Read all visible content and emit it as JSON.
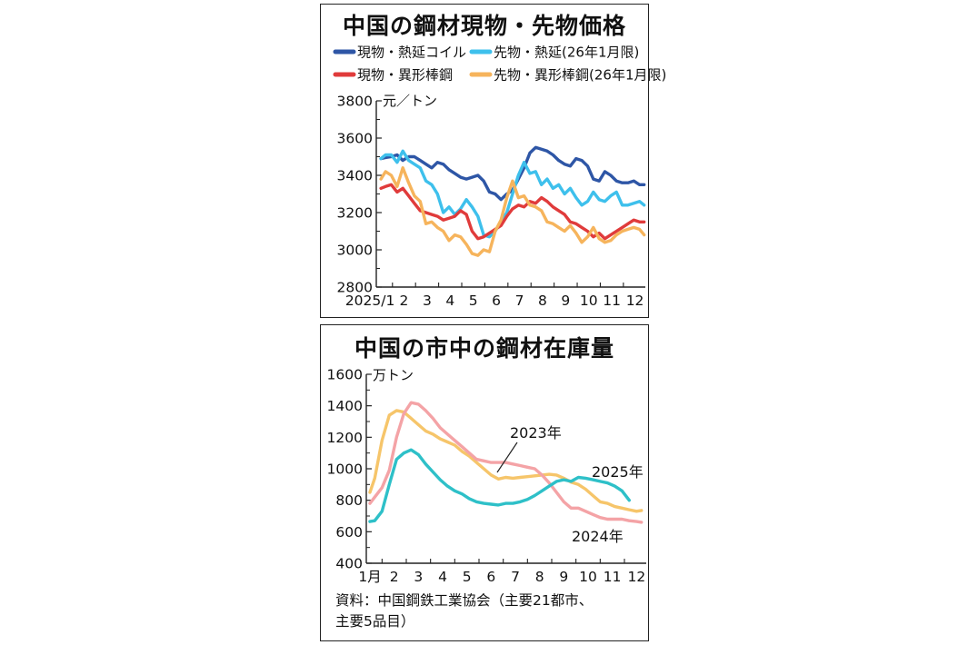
{
  "chart_data": [
    {
      "type": "line",
      "title": "中国の鋼材現物・先物価格",
      "unit_label": "元／トン",
      "ylim": [
        2800,
        3800
      ],
      "yticks": [
        "2800",
        "3000",
        "3200",
        "3400",
        "3600",
        "3800"
      ],
      "x_tick_labels": [
        "2025/1",
        "2",
        "3",
        "4",
        "5",
        "6",
        "7",
        "8",
        "9",
        "10",
        "11",
        "12"
      ],
      "x_range": [
        0.8,
        12.45
      ],
      "grid": false,
      "legend_position": "top",
      "series": [
        {
          "name": "現物・熱延コイル",
          "color": "#2e56a6",
          "x": [
            1.0,
            1.2,
            1.45,
            1.7,
            1.95,
            2.2,
            2.45,
            2.7,
            2.95,
            3.2,
            3.45,
            3.7,
            3.95,
            4.2,
            4.45,
            4.7,
            4.95,
            5.2,
            5.45,
            5.7,
            5.95,
            6.2,
            6.45,
            6.7,
            6.95,
            7.2,
            7.45,
            7.7,
            7.95,
            8.2,
            8.45,
            8.7,
            8.95,
            9.2,
            9.45,
            9.7,
            9.95,
            10.2,
            10.45,
            10.7,
            10.95,
            11.2,
            11.45,
            11.7,
            11.95,
            12.2,
            12.4
          ],
          "y": [
            3490,
            3495,
            3500,
            3510,
            3480,
            3500,
            3500,
            3480,
            3460,
            3440,
            3470,
            3460,
            3430,
            3410,
            3390,
            3380,
            3390,
            3400,
            3370,
            3310,
            3300,
            3270,
            3300,
            3320,
            3380,
            3440,
            3520,
            3550,
            3540,
            3530,
            3510,
            3480,
            3460,
            3450,
            3490,
            3480,
            3450,
            3380,
            3370,
            3420,
            3400,
            3370,
            3360,
            3360,
            3370,
            3350,
            3350
          ]
        },
        {
          "name": "先物・熱延(26年1月限)",
          "color": "#3ec0ec",
          "x": [
            1.0,
            1.2,
            1.45,
            1.7,
            1.95,
            2.2,
            2.45,
            2.7,
            2.95,
            3.2,
            3.45,
            3.7,
            3.95,
            4.2,
            4.45,
            4.7,
            4.95,
            5.2,
            5.45,
            5.7,
            5.95,
            6.2,
            6.45,
            6.7,
            6.95,
            7.2,
            7.45,
            7.7,
            7.95,
            8.2,
            8.45,
            8.7,
            8.95,
            9.2,
            9.45,
            9.7,
            9.95,
            10.2,
            10.45,
            10.7,
            10.95,
            11.2,
            11.45,
            11.7,
            11.95,
            12.2,
            12.4
          ],
          "y": [
            3490,
            3510,
            3510,
            3470,
            3530,
            3480,
            3460,
            3440,
            3370,
            3350,
            3300,
            3200,
            3230,
            3190,
            3220,
            3270,
            3230,
            3180,
            3080,
            3070,
            3100,
            3150,
            3200,
            3300,
            3400,
            3470,
            3410,
            3420,
            3350,
            3380,
            3330,
            3350,
            3300,
            3330,
            3280,
            3240,
            3260,
            3310,
            3270,
            3260,
            3290,
            3310,
            3240,
            3240,
            3250,
            3260,
            3240
          ]
        },
        {
          "name": "現物・異形棒鋼",
          "color": "#e03b3b",
          "x": [
            1.0,
            1.2,
            1.45,
            1.7,
            1.95,
            2.2,
            2.45,
            2.7,
            2.95,
            3.2,
            3.45,
            3.7,
            3.95,
            4.2,
            4.45,
            4.7,
            4.95,
            5.2,
            5.45,
            5.7,
            5.95,
            6.2,
            6.45,
            6.7,
            6.95,
            7.2,
            7.45,
            7.7,
            7.95,
            8.2,
            8.45,
            8.7,
            8.95,
            9.2,
            9.45,
            9.7,
            9.95,
            10.2,
            10.45,
            10.7,
            10.95,
            11.2,
            11.45,
            11.7,
            11.95,
            12.2,
            12.4
          ],
          "y": [
            3330,
            3340,
            3350,
            3310,
            3330,
            3290,
            3250,
            3210,
            3200,
            3190,
            3180,
            3160,
            3170,
            3180,
            3210,
            3190,
            3100,
            3060,
            3070,
            3090,
            3110,
            3130,
            3180,
            3220,
            3240,
            3230,
            3260,
            3250,
            3280,
            3260,
            3230,
            3210,
            3190,
            3150,
            3140,
            3120,
            3100,
            3070,
            3090,
            3060,
            3080,
            3100,
            3120,
            3140,
            3160,
            3150,
            3150
          ]
        },
        {
          "name": "先物・異形棒鋼(26年1月限)",
          "color": "#f6b45c",
          "x": [
            1.0,
            1.2,
            1.45,
            1.7,
            1.95,
            2.2,
            2.45,
            2.7,
            2.95,
            3.2,
            3.45,
            3.7,
            3.95,
            4.2,
            4.45,
            4.7,
            4.95,
            5.2,
            5.45,
            5.7,
            5.95,
            6.2,
            6.45,
            6.7,
            6.95,
            7.2,
            7.45,
            7.7,
            7.95,
            8.2,
            8.45,
            8.7,
            8.95,
            9.2,
            9.45,
            9.7,
            9.95,
            10.2,
            10.45,
            10.7,
            10.95,
            11.2,
            11.45,
            11.7,
            11.95,
            12.2,
            12.4
          ],
          "y": [
            3380,
            3420,
            3400,
            3340,
            3440,
            3360,
            3290,
            3260,
            3140,
            3150,
            3120,
            3100,
            3050,
            3080,
            3070,
            3030,
            2980,
            2970,
            3000,
            2990,
            3100,
            3160,
            3280,
            3370,
            3280,
            3290,
            3240,
            3230,
            3210,
            3150,
            3140,
            3120,
            3100,
            3130,
            3090,
            3040,
            3070,
            3120,
            3060,
            3040,
            3050,
            3080,
            3100,
            3110,
            3120,
            3110,
            3080
          ]
        }
      ]
    },
    {
      "type": "line",
      "title": "中国の市中の鋼材在庫量",
      "unit_label": "万トン",
      "ylim": [
        400,
        1600
      ],
      "yticks": [
        "400",
        "600",
        "800",
        "1000",
        "1200",
        "1400",
        "1600"
      ],
      "x_tick_labels": [
        "1月",
        "2",
        "3",
        "4",
        "5",
        "6",
        "7",
        "8",
        "9",
        "10",
        "11",
        "12"
      ],
      "x_range": [
        0.85,
        12.4
      ],
      "grid": false,
      "series": [
        {
          "name": "2023年",
          "color": "#f6c56a",
          "x": [
            1.0,
            1.2,
            1.5,
            1.8,
            2.1,
            2.4,
            2.7,
            3.0,
            3.3,
            3.6,
            3.9,
            4.2,
            4.5,
            4.8,
            5.1,
            5.4,
            5.7,
            6.0,
            6.3,
            6.6,
            6.9,
            7.2,
            7.5,
            7.8,
            8.1,
            8.4,
            8.7,
            9.0,
            9.3,
            9.6,
            9.9,
            10.2,
            10.5,
            10.8,
            11.1,
            11.4,
            11.7,
            12.0,
            12.2
          ],
          "y": [
            850,
            940,
            1180,
            1340,
            1370,
            1360,
            1320,
            1280,
            1240,
            1220,
            1190,
            1170,
            1150,
            1110,
            1080,
            1040,
            1000,
            960,
            935,
            945,
            940,
            945,
            950,
            955,
            960,
            965,
            960,
            940,
            915,
            900,
            870,
            830,
            790,
            780,
            760,
            750,
            740,
            730,
            735
          ]
        },
        {
          "name": "2024年",
          "color": "#f4a3a6",
          "x": [
            1.0,
            1.2,
            1.5,
            1.8,
            2.1,
            2.4,
            2.7,
            3.0,
            3.3,
            3.6,
            3.9,
            4.2,
            4.5,
            4.8,
            5.1,
            5.4,
            5.7,
            6.0,
            6.3,
            6.6,
            6.9,
            7.2,
            7.5,
            7.8,
            8.1,
            8.4,
            8.7,
            9.0,
            9.3,
            9.6,
            9.9,
            10.2,
            10.5,
            10.8,
            11.1,
            11.4,
            11.7,
            12.0,
            12.2
          ],
          "y": [
            780,
            820,
            880,
            990,
            1200,
            1350,
            1420,
            1410,
            1370,
            1320,
            1260,
            1220,
            1180,
            1140,
            1100,
            1060,
            1050,
            1040,
            1040,
            1040,
            1030,
            1020,
            1010,
            1000,
            960,
            910,
            850,
            790,
            750,
            750,
            730,
            710,
            690,
            680,
            680,
            680,
            670,
            665,
            660
          ]
        },
        {
          "name": "2025年",
          "color": "#2ec0c8",
          "x": [
            1.0,
            1.2,
            1.5,
            1.8,
            2.1,
            2.4,
            2.7,
            3.0,
            3.3,
            3.6,
            3.9,
            4.2,
            4.5,
            4.8,
            5.1,
            5.4,
            5.7,
            6.0,
            6.3,
            6.6,
            6.9,
            7.2,
            7.5,
            7.8,
            8.1,
            8.4,
            8.7,
            9.0,
            9.3,
            9.6,
            9.9,
            10.2,
            10.5,
            10.8,
            11.1,
            11.4,
            11.7
          ],
          "y": [
            665,
            670,
            730,
            900,
            1060,
            1100,
            1120,
            1090,
            1030,
            980,
            930,
            890,
            860,
            840,
            810,
            790,
            780,
            775,
            770,
            780,
            780,
            790,
            805,
            830,
            860,
            890,
            920,
            930,
            920,
            945,
            940,
            930,
            920,
            910,
            890,
            860,
            800
          ]
        }
      ],
      "annotations": [
        "2023年",
        "2025年",
        "2024年"
      ]
    }
  ],
  "source_line1": "資料：中国鋼鉄工業協会（主要21都市、",
  "source_line2": "主要5品目）"
}
